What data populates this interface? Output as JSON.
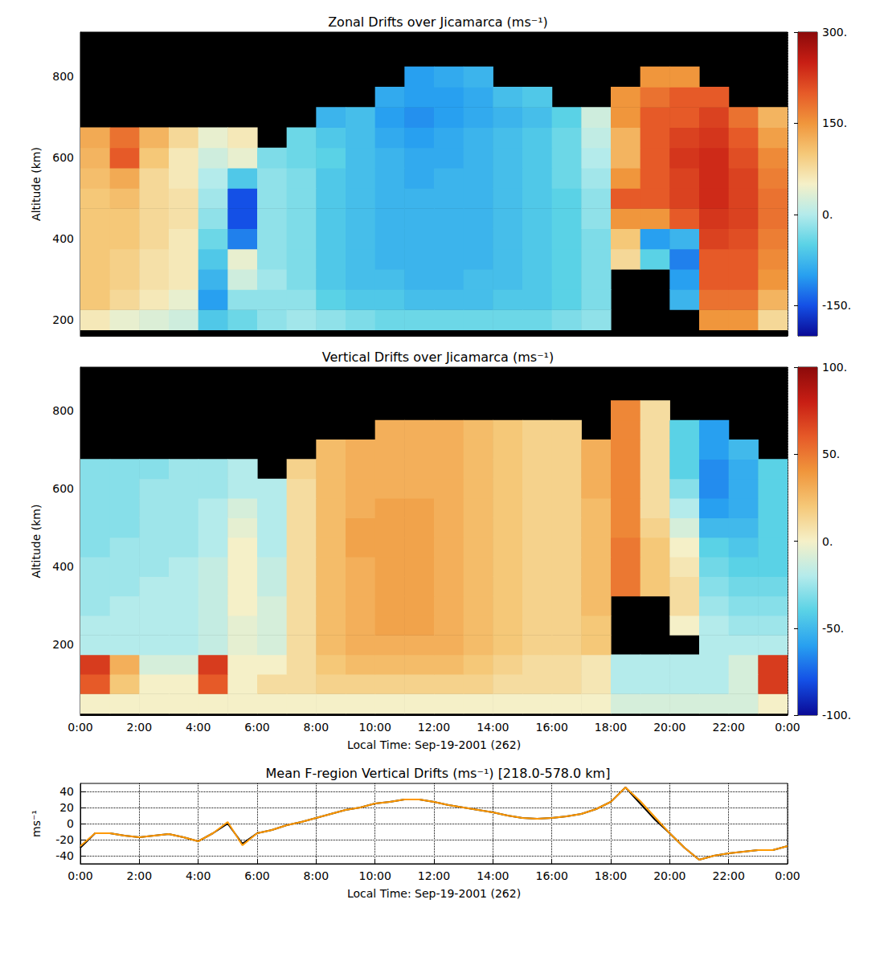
{
  "chart_data": [
    {
      "type": "heatmap",
      "title": "Zonal Drifts over Jicamarca (ms⁻¹)",
      "ylabel": "Altitude (km)",
      "x": [
        0.5,
        1.5,
        2.5,
        3.5,
        4.5,
        5.5,
        6.5,
        7.5,
        8.5,
        9.5,
        10.5,
        11.5,
        12.5,
        13.5,
        14.5,
        15.5,
        16.5,
        17.5,
        18.5,
        19.5,
        20.5,
        21.5,
        22.5,
        23.5
      ],
      "y": [
        200,
        250,
        300,
        350,
        400,
        450,
        500,
        550,
        600,
        650,
        700,
        750,
        800
      ],
      "cells": [
        [
          60,
          40,
          30,
          20,
          -60,
          -40,
          -20,
          -10,
          -20,
          -30,
          -40,
          -40,
          -40,
          -40,
          -40,
          -40,
          -30,
          -20,
          null,
          null,
          null,
          150,
          150,
          80
        ],
        [
          100,
          80,
          60,
          40,
          -100,
          -20,
          -20,
          -20,
          -50,
          -60,
          -60,
          -70,
          -70,
          -70,
          -60,
          -60,
          -50,
          -30,
          null,
          null,
          -80,
          180,
          180,
          120
        ],
        [
          100,
          90,
          70,
          60,
          -80,
          20,
          -10,
          -30,
          -60,
          -70,
          -70,
          -80,
          -80,
          -70,
          -70,
          -60,
          -50,
          -30,
          null,
          null,
          -100,
          200,
          200,
          150
        ],
        [
          100,
          90,
          70,
          60,
          -60,
          40,
          -20,
          -30,
          -60,
          -70,
          -80,
          -80,
          -80,
          -80,
          -70,
          -60,
          -50,
          -30,
          80,
          -50,
          -120,
          200,
          200,
          160
        ],
        [
          100,
          100,
          80,
          60,
          -40,
          -120,
          -20,
          -30,
          -60,
          -70,
          -80,
          -80,
          -80,
          -80,
          -70,
          -60,
          -50,
          -30,
          100,
          -100,
          -80,
          220,
          210,
          170
        ],
        [
          100,
          100,
          80,
          70,
          -20,
          -150,
          -20,
          -30,
          -60,
          -70,
          -80,
          -80,
          -80,
          -80,
          -70,
          -60,
          -50,
          -20,
          150,
          150,
          200,
          230,
          220,
          180
        ],
        [
          100,
          110,
          80,
          70,
          -10,
          -150,
          -20,
          -30,
          -60,
          -70,
          -80,
          -80,
          -80,
          -80,
          -70,
          -60,
          -50,
          -20,
          200,
          200,
          220,
          240,
          220,
          180
        ],
        [
          110,
          130,
          80,
          60,
          0,
          -60,
          -20,
          -30,
          -60,
          -70,
          -80,
          -90,
          -80,
          -80,
          -70,
          -60,
          -40,
          -10,
          150,
          200,
          220,
          240,
          220,
          170
        ],
        [
          120,
          200,
          100,
          60,
          20,
          40,
          -30,
          -40,
          -50,
          -70,
          -80,
          -90,
          -90,
          -80,
          -70,
          -60,
          -40,
          0,
          120,
          200,
          230,
          240,
          210,
          160
        ],
        [
          130,
          180,
          120,
          80,
          40,
          60,
          null,
          -40,
          -60,
          -70,
          -90,
          -100,
          -90,
          -80,
          -70,
          -60,
          -40,
          10,
          120,
          200,
          220,
          230,
          200,
          140
        ],
        [
          null,
          null,
          null,
          null,
          null,
          null,
          null,
          null,
          -80,
          -70,
          -100,
          -110,
          -100,
          -90,
          -80,
          -70,
          -50,
          20,
          150,
          200,
          200,
          220,
          180,
          120
        ],
        [
          null,
          null,
          null,
          null,
          null,
          null,
          null,
          null,
          null,
          null,
          -90,
          -100,
          -100,
          -90,
          -70,
          -60,
          null,
          null,
          150,
          180,
          200,
          200,
          null,
          null
        ],
        [
          null,
          null,
          null,
          null,
          null,
          null,
          null,
          null,
          null,
          null,
          null,
          -100,
          -90,
          -80,
          null,
          null,
          null,
          null,
          null,
          150,
          150,
          null,
          null,
          null
        ]
      ],
      "xlim": [
        0,
        24
      ],
      "xticks": [
        {
          "value": 0,
          "label": "0:00"
        },
        {
          "value": 2,
          "label": "2:00"
        },
        {
          "value": 4,
          "label": "4:00"
        },
        {
          "value": 6,
          "label": "6:00"
        },
        {
          "value": 8,
          "label": "8:00"
        },
        {
          "value": 10,
          "label": "10:00"
        },
        {
          "value": 12,
          "label": "12:00"
        },
        {
          "value": 14,
          "label": "14:00"
        },
        {
          "value": 16,
          "label": "16:00"
        },
        {
          "value": 18,
          "label": "18:00"
        },
        {
          "value": 20,
          "label": "20:00"
        },
        {
          "value": 22,
          "label": "22:00"
        },
        {
          "value": 24,
          "label": "0:00"
        }
      ],
      "ylim": [
        160,
        910
      ],
      "yticks": [
        200,
        400,
        600,
        800
      ],
      "tick_labels": "y",
      "grid": true,
      "color_range": [
        -200,
        300
      ],
      "color_ticks": [
        {
          "value": 300,
          "label": "300."
        },
        {
          "value": 150,
          "label": "150."
        },
        {
          "value": 0,
          "label": "0."
        },
        {
          "value": -150,
          "label": "-150."
        }
      ]
    },
    {
      "type": "heatmap",
      "title": "Vertical Drifts over Jicamarca (ms⁻¹)",
      "xlabel": "Local Time: Sep-19-2001 (262)",
      "ylabel": "Altitude (km)",
      "x": [
        0.5,
        1.5,
        2.5,
        3.5,
        4.5,
        5.5,
        6.5,
        7.5,
        8.5,
        9.5,
        10.5,
        11.5,
        12.5,
        13.5,
        14.5,
        15.5,
        16.5,
        17.5,
        18.5,
        19.5,
        20.5,
        21.5,
        22.5,
        23.5
      ],
      "y": [
        50,
        100,
        150,
        200,
        250,
        300,
        350,
        400,
        450,
        500,
        550,
        600,
        650,
        700,
        750,
        800
      ],
      "cells": [
        [
          0,
          0,
          0,
          0,
          0,
          0,
          0,
          0,
          0,
          0,
          0,
          0,
          0,
          0,
          0,
          0,
          0,
          0,
          -10,
          -10,
          -10,
          -10,
          -10,
          0
        ],
        [
          60,
          20,
          0,
          0,
          60,
          0,
          10,
          10,
          15,
          15,
          15,
          15,
          15,
          15,
          10,
          10,
          10,
          5,
          -20,
          -20,
          -20,
          -20,
          -10,
          70
        ],
        [
          70,
          30,
          -10,
          -10,
          70,
          0,
          0,
          10,
          20,
          25,
          25,
          25,
          25,
          20,
          15,
          10,
          10,
          5,
          -20,
          -20,
          -20,
          -20,
          -10,
          70
        ],
        [
          -20,
          -20,
          -20,
          -20,
          -15,
          -5,
          -10,
          10,
          25,
          30,
          30,
          30,
          30,
          25,
          20,
          15,
          15,
          20,
          null,
          null,
          null,
          -20,
          -20,
          -20
        ],
        [
          -20,
          -20,
          -20,
          -20,
          -15,
          -5,
          -10,
          10,
          25,
          30,
          35,
          35,
          30,
          25,
          20,
          15,
          15,
          20,
          null,
          null,
          0,
          -20,
          -25,
          -25
        ],
        [
          -25,
          -20,
          -20,
          -20,
          -15,
          0,
          -10,
          10,
          25,
          30,
          35,
          35,
          30,
          25,
          20,
          15,
          15,
          25,
          null,
          null,
          10,
          -25,
          -30,
          -30
        ],
        [
          -25,
          -25,
          -20,
          -20,
          -15,
          0,
          -15,
          10,
          25,
          30,
          35,
          35,
          30,
          25,
          20,
          15,
          15,
          25,
          50,
          20,
          10,
          -30,
          -35,
          -35
        ],
        [
          -25,
          -25,
          -25,
          -20,
          -15,
          0,
          -15,
          10,
          25,
          30,
          35,
          35,
          30,
          25,
          20,
          15,
          15,
          25,
          50,
          20,
          5,
          -35,
          -40,
          -40
        ],
        [
          -30,
          -25,
          -25,
          -25,
          -20,
          0,
          -20,
          10,
          25,
          35,
          35,
          35,
          30,
          25,
          20,
          15,
          15,
          25,
          50,
          20,
          0,
          -40,
          -45,
          -40
        ],
        [
          -30,
          -30,
          -25,
          -25,
          -20,
          -5,
          -20,
          10,
          25,
          35,
          35,
          35,
          30,
          25,
          20,
          15,
          15,
          25,
          45,
          15,
          -10,
          -50,
          -50,
          -40
        ],
        [
          -30,
          -30,
          -25,
          -25,
          -20,
          -10,
          -20,
          10,
          25,
          30,
          35,
          35,
          30,
          25,
          20,
          15,
          15,
          25,
          45,
          10,
          -20,
          -60,
          -55,
          -40
        ],
        [
          -30,
          -30,
          -25,
          -25,
          -25,
          -20,
          -20,
          10,
          25,
          30,
          30,
          30,
          30,
          25,
          20,
          15,
          15,
          30,
          45,
          10,
          -30,
          -65,
          -55,
          -40
        ],
        [
          -30,
          -30,
          -30,
          -25,
          -25,
          -20,
          null,
          15,
          25,
          30,
          30,
          30,
          30,
          25,
          20,
          15,
          15,
          30,
          45,
          10,
          -40,
          -65,
          -55,
          -40
        ],
        [
          null,
          null,
          null,
          null,
          null,
          null,
          null,
          null,
          25,
          30,
          30,
          30,
          30,
          25,
          20,
          15,
          15,
          30,
          45,
          10,
          -40,
          -60,
          -50,
          null
        ],
        [
          null,
          null,
          null,
          null,
          null,
          null,
          null,
          null,
          null,
          null,
          30,
          30,
          30,
          25,
          20,
          15,
          15,
          null,
          45,
          10,
          -40,
          -60,
          null,
          null
        ],
        [
          null,
          null,
          null,
          null,
          null,
          null,
          null,
          null,
          null,
          null,
          null,
          null,
          null,
          null,
          null,
          null,
          null,
          null,
          45,
          10,
          null,
          null,
          null,
          null
        ]
      ],
      "xlim": [
        0,
        24
      ],
      "xticks": [
        {
          "value": 0,
          "label": "0:00"
        },
        {
          "value": 2,
          "label": "2:00"
        },
        {
          "value": 4,
          "label": "4:00"
        },
        {
          "value": 6,
          "label": "6:00"
        },
        {
          "value": 8,
          "label": "8:00"
        },
        {
          "value": 10,
          "label": "10:00"
        },
        {
          "value": 12,
          "label": "12:00"
        },
        {
          "value": 14,
          "label": "14:00"
        },
        {
          "value": 16,
          "label": "16:00"
        },
        {
          "value": 18,
          "label": "18:00"
        },
        {
          "value": 20,
          "label": "20:00"
        },
        {
          "value": 22,
          "label": "22:00"
        },
        {
          "value": 24,
          "label": "0:00"
        }
      ],
      "ylim": [
        20,
        910
      ],
      "yticks": [
        200,
        400,
        600,
        800
      ],
      "grid": true,
      "color_range": [
        -100,
        100
      ],
      "color_ticks": [
        {
          "value": 100,
          "label": "100."
        },
        {
          "value": 50,
          "label": "50."
        },
        {
          "value": 0,
          "label": "0."
        },
        {
          "value": -50,
          "label": "-50."
        },
        {
          "value": -100,
          "label": "-100."
        }
      ]
    },
    {
      "type": "line",
      "title": "Mean F-region Vertical Drifts (ms⁻¹) [218.0-578.0 km]",
      "xlabel": "Local Time: Sep-19-2001 (262)",
      "ylabel": "ms⁻¹",
      "x": [
        0,
        0.5,
        1,
        1.5,
        2,
        2.5,
        3,
        3.5,
        4,
        4.5,
        5,
        5.5,
        6,
        6.5,
        7,
        7.5,
        8,
        8.5,
        9,
        9.5,
        10,
        10.5,
        11,
        11.5,
        12,
        12.5,
        13,
        13.5,
        14,
        14.5,
        15,
        15.5,
        16,
        16.5,
        17,
        17.5,
        18,
        18.5,
        19,
        19.5,
        20,
        20.5,
        21,
        21.5,
        22,
        22.5,
        23,
        23.5,
        24
      ],
      "series": [
        {
          "color": "#000000",
          "values": [
            -30,
            -12,
            -12,
            -15,
            -17,
            -15,
            -13,
            -17,
            -22,
            -12,
            0,
            -25,
            -12,
            -8,
            -2,
            2,
            7,
            12,
            17,
            20,
            25,
            27,
            30,
            30,
            27,
            23,
            20,
            17,
            14,
            10,
            7,
            6,
            7,
            9,
            12,
            18,
            27,
            45,
            25,
            5,
            -12,
            -30,
            -45,
            -40,
            -37,
            -35,
            -33,
            -33,
            -28
          ]
        },
        {
          "color": "#ff9900",
          "values": [
            -28,
            -12,
            -12,
            -15,
            -17,
            -15,
            -13,
            -17,
            -22,
            -12,
            2,
            -27,
            -12,
            -8,
            -2,
            2,
            7,
            12,
            17,
            20,
            25,
            27,
            30,
            30,
            27,
            23,
            20,
            17,
            14,
            10,
            7,
            6,
            7,
            9,
            12,
            18,
            27,
            45,
            28,
            8,
            -12,
            -30,
            -45,
            -40,
            -37,
            -35,
            -33,
            -33,
            -28
          ]
        }
      ],
      "xlim": [
        0,
        24
      ],
      "xticks": [
        {
          "value": 0,
          "label": "0:00"
        },
        {
          "value": 2,
          "label": "2:00"
        },
        {
          "value": 4,
          "label": "4:00"
        },
        {
          "value": 6,
          "label": "6:00"
        },
        {
          "value": 8,
          "label": "8:00"
        },
        {
          "value": 10,
          "label": "10:00"
        },
        {
          "value": 12,
          "label": "12:00"
        },
        {
          "value": 14,
          "label": "14:00"
        },
        {
          "value": 16,
          "label": "16:00"
        },
        {
          "value": 18,
          "label": "18:00"
        },
        {
          "value": 20,
          "label": "20:00"
        },
        {
          "value": 22,
          "label": "22:00"
        },
        {
          "value": 24,
          "label": "0:00"
        }
      ],
      "ylim": [
        -50,
        50
      ],
      "yticks": [
        -40,
        -20,
        0,
        20,
        40
      ],
      "grid": true
    }
  ]
}
